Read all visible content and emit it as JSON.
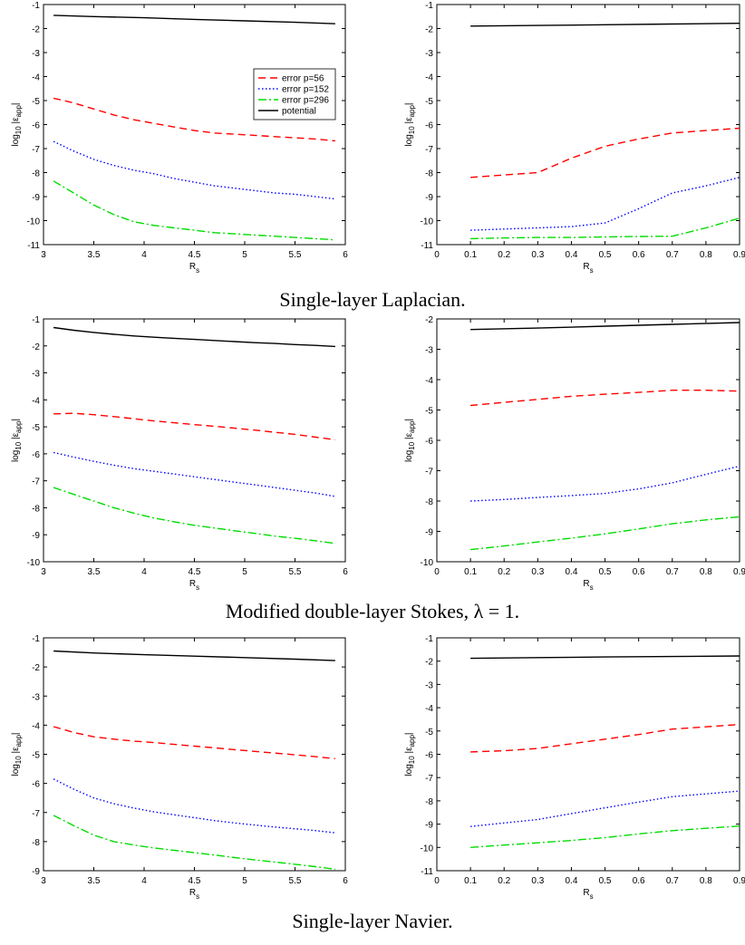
{
  "captions": [
    "Single-layer Laplacian.",
    "Modified double-layer Stokes, λ = 1.",
    "Single-layer Navier."
  ],
  "legend_labels": [
    "error p=56",
    "error p=152",
    "error p=296",
    "potential"
  ],
  "series_styles": [
    {
      "color": "#ff0000",
      "dash": "8,5"
    },
    {
      "color": "#0000ff",
      "dash": "1.5,2.5"
    },
    {
      "color": "#00dd00",
      "dash": "9,3,2,3"
    },
    {
      "color": "#000000",
      "dash": ""
    }
  ],
  "chart_data": [
    {
      "type": "line",
      "caption": "Single-layer Laplacian.",
      "xlabel": "R_s",
      "ylabel": "log10 |ε_app|",
      "xlim": [
        3,
        6
      ],
      "ylim": [
        -11,
        -1
      ],
      "xticks": [
        3,
        3.5,
        4,
        4.5,
        5,
        5.5,
        6
      ],
      "yticks": [
        -11,
        -10,
        -9,
        -8,
        -7,
        -6,
        -5,
        -4,
        -3,
        -2,
        -1
      ],
      "legend": "upper right",
      "series": [
        {
          "name": "error p=56",
          "x": [
            3.1,
            3.3,
            3.5,
            3.7,
            3.9,
            4.1,
            4.3,
            4.5,
            4.7,
            4.9,
            5.1,
            5.3,
            5.5,
            5.7,
            5.9
          ],
          "y": [
            -4.9,
            -5.1,
            -5.35,
            -5.6,
            -5.8,
            -5.95,
            -6.1,
            -6.25,
            -6.35,
            -6.4,
            -6.45,
            -6.5,
            -6.55,
            -6.6,
            -6.68
          ]
        },
        {
          "name": "error p=152",
          "x": [
            3.1,
            3.3,
            3.5,
            3.7,
            3.9,
            4.1,
            4.3,
            4.5,
            4.7,
            4.9,
            5.1,
            5.3,
            5.5,
            5.7,
            5.9
          ],
          "y": [
            -6.7,
            -7.1,
            -7.45,
            -7.7,
            -7.9,
            -8.05,
            -8.25,
            -8.4,
            -8.55,
            -8.65,
            -8.75,
            -8.85,
            -8.9,
            -9.0,
            -9.1
          ]
        },
        {
          "name": "error p=296",
          "x": [
            3.1,
            3.3,
            3.5,
            3.7,
            3.9,
            4.1,
            4.3,
            4.5,
            4.7,
            4.9,
            5.1,
            5.3,
            5.5,
            5.7,
            5.9
          ],
          "y": [
            -8.35,
            -8.85,
            -9.35,
            -9.75,
            -10.05,
            -10.2,
            -10.3,
            -10.4,
            -10.5,
            -10.55,
            -10.6,
            -10.65,
            -10.7,
            -10.75,
            -10.8
          ]
        },
        {
          "name": "potential",
          "x": [
            3.1,
            3.5,
            4.0,
            4.5,
            5.0,
            5.5,
            5.9
          ],
          "y": [
            -1.45,
            -1.5,
            -1.55,
            -1.62,
            -1.68,
            -1.74,
            -1.8
          ]
        }
      ]
    },
    {
      "type": "line",
      "xlabel": "R_s",
      "ylabel": "log10 |ε_app|",
      "xlim": [
        0,
        0.9
      ],
      "ylim": [
        -11,
        -1
      ],
      "xticks": [
        0,
        0.1,
        0.2,
        0.3,
        0.4,
        0.5,
        0.6,
        0.7,
        0.8,
        0.9
      ],
      "yticks": [
        -11,
        -10,
        -9,
        -8,
        -7,
        -6,
        -5,
        -4,
        -3,
        -2,
        -1
      ],
      "series": [
        {
          "name": "error p=56",
          "x": [
            0.1,
            0.2,
            0.3,
            0.4,
            0.5,
            0.6,
            0.7,
            0.8,
            0.9
          ],
          "y": [
            -8.2,
            -8.1,
            -8.0,
            -7.4,
            -6.9,
            -6.6,
            -6.35,
            -6.25,
            -6.15
          ]
        },
        {
          "name": "error p=152",
          "x": [
            0.1,
            0.2,
            0.3,
            0.4,
            0.5,
            0.6,
            0.7,
            0.8,
            0.9
          ],
          "y": [
            -10.4,
            -10.35,
            -10.3,
            -10.25,
            -10.1,
            -9.5,
            -8.85,
            -8.55,
            -8.2
          ]
        },
        {
          "name": "error p=296",
          "x": [
            0.1,
            0.2,
            0.3,
            0.4,
            0.5,
            0.6,
            0.7,
            0.8,
            0.9
          ],
          "y": [
            -10.75,
            -10.72,
            -10.7,
            -10.7,
            -10.68,
            -10.66,
            -10.65,
            -10.3,
            -9.9
          ]
        },
        {
          "name": "potential",
          "x": [
            0.1,
            0.3,
            0.5,
            0.7,
            0.9
          ],
          "y": [
            -1.9,
            -1.87,
            -1.84,
            -1.81,
            -1.78
          ]
        }
      ]
    },
    {
      "type": "line",
      "caption": "Modified double-layer Stokes, λ = 1.",
      "xlabel": "R_s",
      "ylabel": "log10 |ε_app|",
      "xlim": [
        3,
        6
      ],
      "ylim": [
        -10,
        -1
      ],
      "xticks": [
        3,
        3.5,
        4,
        4.5,
        5,
        5.5,
        6
      ],
      "yticks": [
        -10,
        -9,
        -8,
        -7,
        -6,
        -5,
        -4,
        -3,
        -2,
        -1
      ],
      "series": [
        {
          "name": "error p=56",
          "x": [
            3.1,
            3.3,
            3.5,
            3.7,
            3.9,
            4.1,
            4.3,
            4.5,
            4.7,
            4.9,
            5.1,
            5.3,
            5.5,
            5.7,
            5.9
          ],
          "y": [
            -4.52,
            -4.5,
            -4.55,
            -4.62,
            -4.7,
            -4.78,
            -4.85,
            -4.92,
            -4.98,
            -5.05,
            -5.12,
            -5.2,
            -5.28,
            -5.38,
            -5.48
          ]
        },
        {
          "name": "error p=152",
          "x": [
            3.1,
            3.3,
            3.5,
            3.7,
            3.9,
            4.1,
            4.3,
            4.5,
            4.7,
            4.9,
            5.1,
            5.3,
            5.5,
            5.7,
            5.9
          ],
          "y": [
            -5.95,
            -6.12,
            -6.28,
            -6.42,
            -6.55,
            -6.65,
            -6.75,
            -6.85,
            -6.95,
            -7.05,
            -7.15,
            -7.25,
            -7.35,
            -7.45,
            -7.58
          ]
        },
        {
          "name": "error p=296",
          "x": [
            3.1,
            3.3,
            3.5,
            3.7,
            3.9,
            4.1,
            4.3,
            4.5,
            4.7,
            4.9,
            5.1,
            5.3,
            5.5,
            5.7,
            5.9
          ],
          "y": [
            -7.25,
            -7.5,
            -7.75,
            -8.0,
            -8.2,
            -8.38,
            -8.52,
            -8.65,
            -8.75,
            -8.85,
            -8.95,
            -9.05,
            -9.13,
            -9.22,
            -9.32
          ]
        },
        {
          "name": "potential",
          "x": [
            3.1,
            3.3,
            3.5,
            3.7,
            3.9,
            4.1,
            4.3,
            4.5,
            4.7,
            4.9,
            5.1,
            5.3,
            5.5,
            5.7,
            5.9
          ],
          "y": [
            -1.32,
            -1.42,
            -1.5,
            -1.57,
            -1.63,
            -1.68,
            -1.72,
            -1.76,
            -1.8,
            -1.84,
            -1.88,
            -1.91,
            -1.95,
            -1.98,
            -2.02
          ]
        }
      ]
    },
    {
      "type": "line",
      "xlabel": "R_s",
      "ylabel": "log10 |ε_app|",
      "xlim": [
        0,
        0.9
      ],
      "ylim": [
        -10,
        -2
      ],
      "xticks": [
        0,
        0.1,
        0.2,
        0.3,
        0.4,
        0.5,
        0.6,
        0.7,
        0.8,
        0.9
      ],
      "yticks": [
        -10,
        -9,
        -8,
        -7,
        -6,
        -5,
        -4,
        -3,
        -2
      ],
      "series": [
        {
          "name": "error p=56",
          "x": [
            0.1,
            0.2,
            0.3,
            0.4,
            0.5,
            0.6,
            0.7,
            0.8,
            0.9
          ],
          "y": [
            -4.85,
            -4.75,
            -4.65,
            -4.55,
            -4.48,
            -4.42,
            -4.35,
            -4.35,
            -4.38
          ]
        },
        {
          "name": "error p=152",
          "x": [
            0.1,
            0.2,
            0.3,
            0.4,
            0.5,
            0.6,
            0.7,
            0.8,
            0.9
          ],
          "y": [
            -8.0,
            -7.95,
            -7.88,
            -7.82,
            -7.75,
            -7.6,
            -7.4,
            -7.12,
            -6.85
          ]
        },
        {
          "name": "error p=296",
          "x": [
            0.1,
            0.2,
            0.3,
            0.4,
            0.5,
            0.6,
            0.7,
            0.8,
            0.9
          ],
          "y": [
            -9.6,
            -9.48,
            -9.35,
            -9.22,
            -9.08,
            -8.92,
            -8.75,
            -8.62,
            -8.52
          ]
        },
        {
          "name": "potential",
          "x": [
            0.1,
            0.3,
            0.5,
            0.7,
            0.9
          ],
          "y": [
            -2.35,
            -2.3,
            -2.24,
            -2.18,
            -2.12
          ]
        }
      ]
    },
    {
      "type": "line",
      "caption": "Single-layer Navier.",
      "xlabel": "R_s",
      "ylabel": "log10 |ε_app|",
      "xlim": [
        3,
        6
      ],
      "ylim": [
        -9,
        -1
      ],
      "xticks": [
        3,
        3.5,
        4,
        4.5,
        5,
        5.5,
        6
      ],
      "yticks": [
        -9,
        -8,
        -7,
        -6,
        -5,
        -4,
        -3,
        -2,
        -1
      ],
      "series": [
        {
          "name": "error p=56",
          "x": [
            3.1,
            3.3,
            3.5,
            3.7,
            3.9,
            4.1,
            4.3,
            4.5,
            4.7,
            4.9,
            5.1,
            5.3,
            5.5,
            5.7,
            5.9
          ],
          "y": [
            -4.05,
            -4.25,
            -4.4,
            -4.48,
            -4.55,
            -4.6,
            -4.66,
            -4.72,
            -4.78,
            -4.84,
            -4.9,
            -4.96,
            -5.02,
            -5.08,
            -5.15
          ]
        },
        {
          "name": "error p=152",
          "x": [
            3.1,
            3.3,
            3.5,
            3.7,
            3.9,
            4.1,
            4.3,
            4.5,
            4.7,
            4.9,
            5.1,
            5.3,
            5.5,
            5.7,
            5.9
          ],
          "y": [
            -5.85,
            -6.2,
            -6.5,
            -6.7,
            -6.85,
            -6.98,
            -7.08,
            -7.18,
            -7.28,
            -7.36,
            -7.43,
            -7.5,
            -7.56,
            -7.62,
            -7.7
          ]
        },
        {
          "name": "error p=296",
          "x": [
            3.1,
            3.3,
            3.5,
            3.7,
            3.9,
            4.1,
            4.3,
            4.5,
            4.7,
            4.9,
            5.1,
            5.3,
            5.5,
            5.7,
            5.9
          ],
          "y": [
            -7.1,
            -7.45,
            -7.78,
            -8.0,
            -8.12,
            -8.22,
            -8.3,
            -8.38,
            -8.46,
            -8.55,
            -8.63,
            -8.7,
            -8.78,
            -8.86,
            -8.95
          ]
        },
        {
          "name": "potential",
          "x": [
            3.1,
            3.5,
            4.0,
            4.5,
            5.0,
            5.5,
            5.9
          ],
          "y": [
            -1.45,
            -1.52,
            -1.58,
            -1.63,
            -1.68,
            -1.73,
            -1.78
          ]
        }
      ]
    },
    {
      "type": "line",
      "xlabel": "R_s",
      "ylabel": "log10 |ε_app|",
      "xlim": [
        0,
        0.9
      ],
      "ylim": [
        -11,
        -1
      ],
      "xticks": [
        0,
        0.1,
        0.2,
        0.3,
        0.4,
        0.5,
        0.6,
        0.7,
        0.8,
        0.9
      ],
      "yticks": [
        -11,
        -10,
        -9,
        -8,
        -7,
        -6,
        -5,
        -4,
        -3,
        -2,
        -1
      ],
      "series": [
        {
          "name": "error p=56",
          "x": [
            0.1,
            0.2,
            0.3,
            0.4,
            0.5,
            0.6,
            0.7,
            0.8,
            0.9
          ],
          "y": [
            -5.9,
            -5.85,
            -5.75,
            -5.55,
            -5.35,
            -5.15,
            -4.92,
            -4.82,
            -4.72
          ]
        },
        {
          "name": "error p=152",
          "x": [
            0.1,
            0.2,
            0.3,
            0.4,
            0.5,
            0.6,
            0.7,
            0.8,
            0.9
          ],
          "y": [
            -9.1,
            -8.95,
            -8.8,
            -8.55,
            -8.3,
            -8.05,
            -7.82,
            -7.7,
            -7.58
          ]
        },
        {
          "name": "error p=296",
          "x": [
            0.1,
            0.2,
            0.3,
            0.4,
            0.5,
            0.6,
            0.7,
            0.8,
            0.9
          ],
          "y": [
            -10.0,
            -9.9,
            -9.8,
            -9.7,
            -9.58,
            -9.42,
            -9.28,
            -9.18,
            -9.08
          ]
        },
        {
          "name": "potential",
          "x": [
            0.1,
            0.3,
            0.5,
            0.7,
            0.9
          ],
          "y": [
            -1.88,
            -1.85,
            -1.82,
            -1.8,
            -1.78
          ]
        }
      ]
    }
  ]
}
